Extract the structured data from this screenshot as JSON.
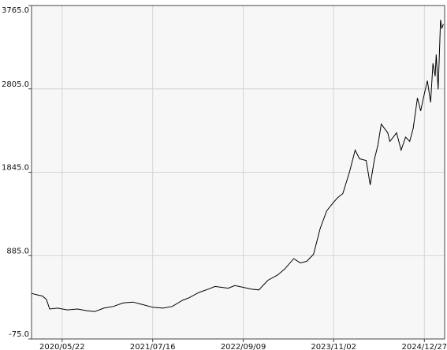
{
  "chart_data": {
    "type": "line",
    "title": "",
    "xlabel": "",
    "ylabel": "",
    "grid": true,
    "ylim": [
      -75.0,
      3765.0
    ],
    "y_ticks": [
      "3765.0",
      "2805.0",
      "1845.0",
      "885.0",
      "-75.0"
    ],
    "y_tick_values": [
      3765.0,
      2805.0,
      1845.0,
      885.0,
      -75.0
    ],
    "x_ticks": [
      "2020/05/22",
      "2021/07/16",
      "2022/09/09",
      "2023/11/02",
      "2024/12/27"
    ],
    "x_tick_dates": [
      "2020-05-22",
      "2021-07-16",
      "2022-09-09",
      "2023-11-02",
      "2024-12-27"
    ],
    "xlim": [
      "2020-01-01",
      "2025-03-31"
    ],
    "series": [
      {
        "line_color": "#000000",
        "x": [
          "2020-01-01",
          "2020-02-01",
          "2020-02-20",
          "2020-03-10",
          "2020-03-25",
          "2020-05-01",
          "2020-06-15",
          "2020-08-01",
          "2020-09-15",
          "2020-10-20",
          "2020-12-01",
          "2021-01-15",
          "2021-03-01",
          "2021-04-15",
          "2021-06-01",
          "2021-07-16",
          "2021-09-01",
          "2021-10-15",
          "2021-12-01",
          "2022-01-01",
          "2022-02-15",
          "2022-04-01",
          "2022-05-01",
          "2022-06-01",
          "2022-07-01",
          "2022-08-01",
          "2022-09-09",
          "2022-10-15",
          "2022-11-20",
          "2023-01-01",
          "2023-02-15",
          "2023-03-20",
          "2023-05-01",
          "2023-06-01",
          "2023-07-01",
          "2023-08-01",
          "2023-09-01",
          "2023-10-01",
          "2023-11-02",
          "2023-11-20",
          "2023-12-15",
          "2024-01-15",
          "2024-02-10",
          "2024-03-01",
          "2024-04-01",
          "2024-04-20",
          "2024-05-10",
          "2024-05-25",
          "2024-06-10",
          "2024-06-25",
          "2024-07-10",
          "2024-07-20",
          "2024-08-05",
          "2024-08-20",
          "2024-09-10",
          "2024-10-01",
          "2024-10-20",
          "2024-11-05",
          "2024-11-25",
          "2024-12-10",
          "2024-12-27",
          "2025-01-10",
          "2025-01-25",
          "2025-02-05",
          "2025-02-15",
          "2025-02-20",
          "2025-03-01",
          "2025-03-08",
          "2025-03-12",
          "2025-03-18",
          "2025-03-25"
        ],
        "y": [
          450,
          430,
          420,
          380,
          270,
          280,
          260,
          270,
          250,
          240,
          280,
          300,
          340,
          350,
          320,
          290,
          280,
          300,
          370,
          400,
          460,
          500,
          530,
          520,
          510,
          540,
          520,
          500,
          490,
          600,
          660,
          730,
          850,
          800,
          820,
          900,
          1200,
          1400,
          1500,
          1550,
          1600,
          1850,
          2100,
          2000,
          1980,
          1700,
          2000,
          2150,
          2400,
          2350,
          2300,
          2200,
          2250,
          2300,
          2100,
          2250,
          2200,
          2350,
          2700,
          2550,
          2750,
          2900,
          2650,
          3100,
          2950,
          3200,
          2800,
          3300,
          3600,
          3500,
          3550
        ]
      }
    ]
  }
}
